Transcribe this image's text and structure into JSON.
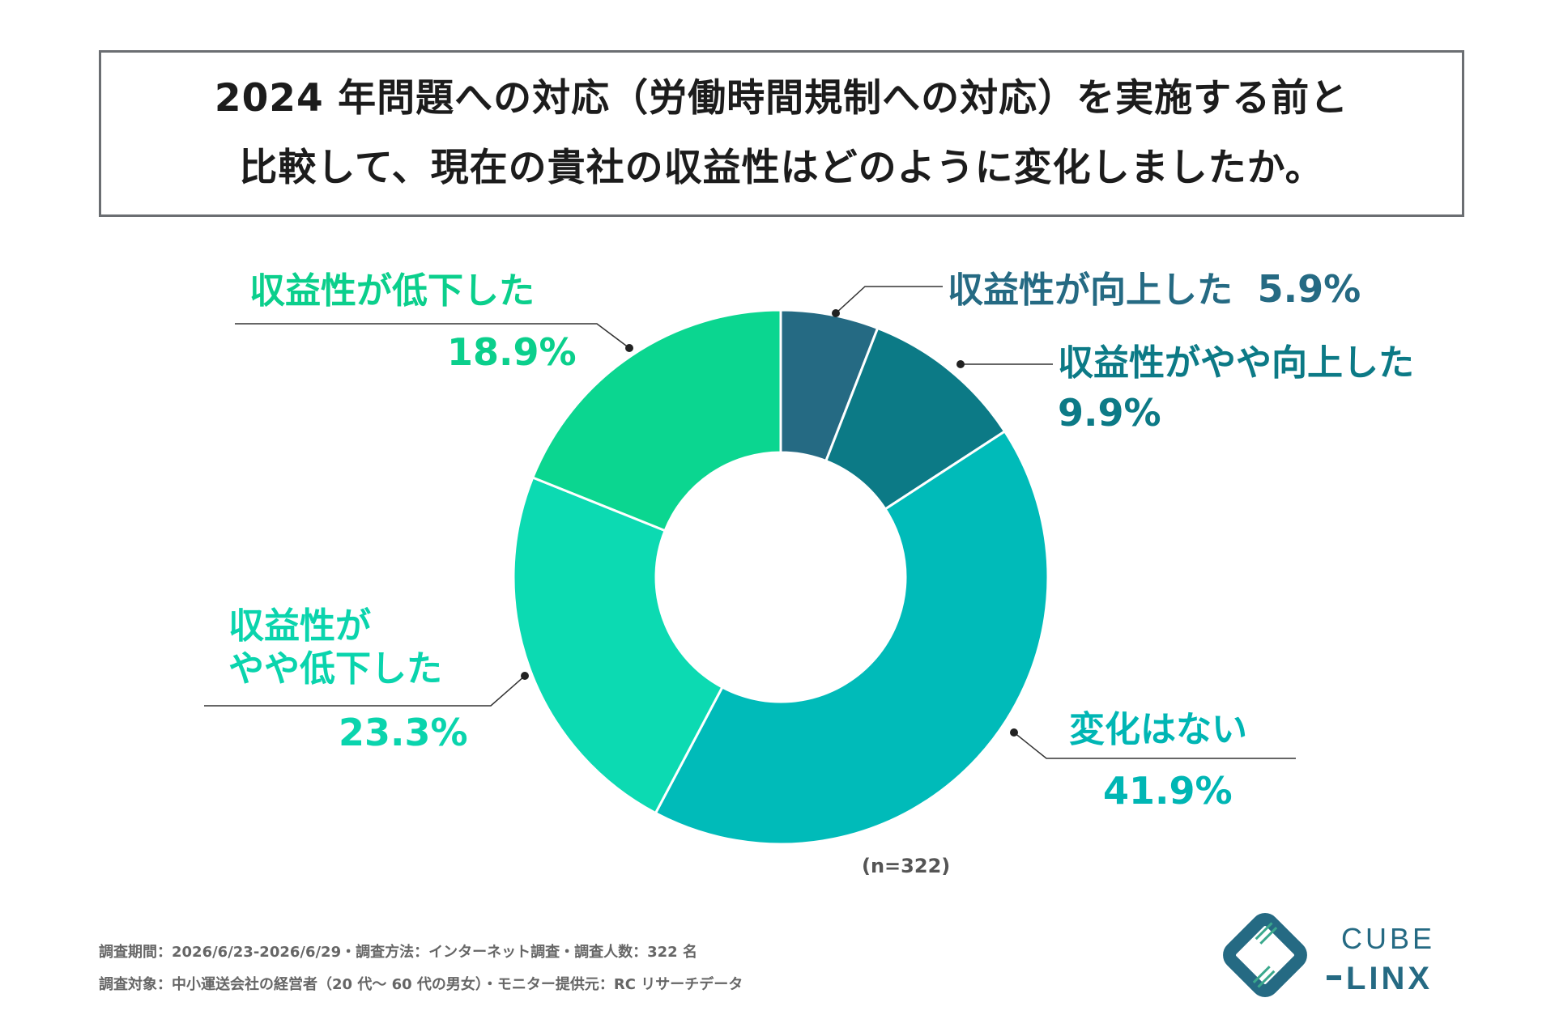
{
  "title": {
    "line1": "2024 年問題への対応（労働時間規制への対応）を実施する前と",
    "line2": "比較して、現在の貴社の収益性はどのように変化しましたか。"
  },
  "chart_data": {
    "type": "pie",
    "sample": "(n=322)",
    "series": [
      {
        "name": "収益性が向上した",
        "value": 5.9,
        "label": "5.9%",
        "color": "#256a83"
      },
      {
        "name": "収益性がやや向上した",
        "value": 9.9,
        "label": "9.9%",
        "color": "#0c7a86"
      },
      {
        "name": "変化はない",
        "value": 41.9,
        "label": "41.9%",
        "color": "#00bbb9"
      },
      {
        "name": "収益性がやや低下した",
        "value": 23.3,
        "label": "23.3%",
        "color": "#0cdab2"
      },
      {
        "name": "収益性が低下した",
        "value": 18.9,
        "label": "18.9%",
        "color": "#0bd690"
      }
    ],
    "label_lines": {
      "slightly_up_line1": "収益性がやや向上した",
      "slightly_down_line1": "収益性が",
      "slightly_down_line2": "やや低下した"
    }
  },
  "footer": {
    "line1": "調査期間：2026/6/23-2026/6/29・調査方法：インターネット調査・調査人数：322 名",
    "line2": "調査対象：中小運送会社の経営者（20 代～ 60 代の男女）・モニター提供元：RC リサーチデータ"
  },
  "logo": {
    "line1": "CUBE",
    "line2": "LINX",
    "color": "#256a83",
    "accent": "#3aa88c"
  }
}
